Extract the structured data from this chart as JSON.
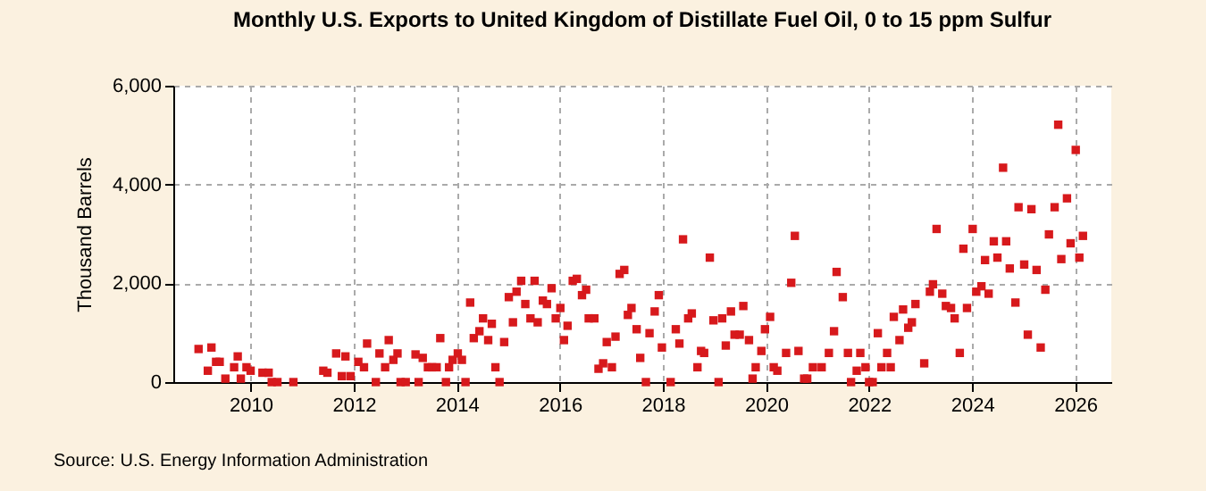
{
  "chart_data": {
    "type": "scatter",
    "title": "Monthly U.S. Exports to United Kingdom of Distillate Fuel Oil, 0 to 15 ppm Sulfur",
    "ylabel": "Thousand Barrels",
    "annotations": [
      "Source: U.S. Energy Information Administration"
    ],
    "marker": "square",
    "grid": true,
    "xlim": [
      2008.5,
      2026.7
    ],
    "xticks": [
      2010,
      2012,
      2014,
      2016,
      2018,
      2020,
      2022,
      2024,
      2026
    ],
    "ylim": [
      0,
      6000
    ],
    "yticks": [
      0,
      {
        "value": 2000,
        "label": "2,000"
      },
      {
        "value": 4000,
        "label": "4,000"
      },
      {
        "value": 6000,
        "label": "6,000"
      }
    ],
    "series": [
      {
        "color": "#d7191c",
        "x": [
          2008.99,
          2009.17,
          2009.24,
          2009.33,
          2009.4,
          2009.51,
          2009.68,
          2009.75,
          2009.81,
          2009.92,
          2010.0,
          2010.23,
          2010.35,
          2010.41,
          2010.52,
          2010.83,
          2011.41,
          2011.49,
          2011.66,
          2011.77,
          2011.84,
          2011.94,
          2012.09,
          2012.2,
          2012.26,
          2012.43,
          2012.5,
          2012.61,
          2012.68,
          2012.77,
          2012.85,
          2012.91,
          2013.01,
          2013.2,
          2013.26,
          2013.34,
          2013.44,
          2013.52,
          2013.61,
          2013.68,
          2013.79,
          2013.85,
          2013.92,
          2014.02,
          2014.1,
          2014.17,
          2014.26,
          2014.33,
          2014.44,
          2014.51,
          2014.61,
          2014.68,
          2014.75,
          2014.83,
          2014.92,
          2015.01,
          2015.09,
          2015.16,
          2015.25,
          2015.33,
          2015.43,
          2015.51,
          2015.57,
          2015.67,
          2015.75,
          2015.84,
          2015.92,
          2016.01,
          2016.08,
          2016.15,
          2016.25,
          2016.33,
          2016.43,
          2016.51,
          2016.56,
          2016.67,
          2016.75,
          2016.84,
          2016.91,
          2017.01,
          2017.08,
          2017.16,
          2017.25,
          2017.32,
          2017.39,
          2017.49,
          2017.56,
          2017.67,
          2017.74,
          2017.84,
          2017.92,
          2017.98,
          2018.15,
          2018.25,
          2018.32,
          2018.39,
          2018.49,
          2018.56,
          2018.67,
          2018.74,
          2018.8,
          2018.91,
          2018.98,
          2019.08,
          2019.15,
          2019.22,
          2019.32,
          2019.39,
          2019.49,
          2019.56,
          2019.67,
          2019.74,
          2019.8,
          2019.91,
          2019.98,
          2020.08,
          2020.15,
          2020.22,
          2020.39,
          2020.49,
          2020.56,
          2020.63,
          2020.74,
          2020.8,
          2020.91,
          2021.08,
          2021.22,
          2021.32,
          2021.37,
          2021.49,
          2021.59,
          2021.65,
          2021.76,
          2021.83,
          2021.93,
          2022.0,
          2022.07,
          2022.17,
          2022.24,
          2022.35,
          2022.42,
          2022.48,
          2022.59,
          2022.66,
          2022.76,
          2022.83,
          2022.9,
          2023.07,
          2023.18,
          2023.24,
          2023.31,
          2023.42,
          2023.49,
          2023.59,
          2023.66,
          2023.76,
          2023.83,
          2023.9,
          2024.01,
          2024.08,
          2024.18,
          2024.25,
          2024.32,
          2024.42,
          2024.49,
          2024.6,
          2024.66,
          2024.73,
          2024.84,
          2024.9,
          2025.01,
          2025.08,
          2025.15,
          2025.25,
          2025.33,
          2025.42,
          2025.49,
          2025.6,
          2025.67,
          2025.73,
          2025.84,
          2025.91,
          2026.01,
          2026.08,
          2026.15
        ],
        "values": [
          670,
          230,
          700,
          410,
          410,
          70,
          300,
          520,
          70,
          300,
          230,
          190,
          190,
          0,
          0,
          0,
          230,
          190,
          580,
          120,
          520,
          120,
          410,
          300,
          780,
          0,
          580,
          300,
          850,
          450,
          580,
          0,
          0,
          560,
          0,
          490,
          300,
          300,
          300,
          890,
          0,
          300,
          450,
          580,
          450,
          0,
          1610,
          890,
          1030,
          1290,
          850,
          1180,
          300,
          0,
          810,
          1720,
          1210,
          1830,
          2050,
          1580,
          1290,
          2050,
          1210,
          1650,
          1580,
          1900,
          1290,
          1500,
          850,
          1140,
          2050,
          2090,
          1760,
          1870,
          1290,
          1290,
          270,
          380,
          810,
          300,
          920,
          2190,
          2270,
          1360,
          1500,
          1070,
          490,
          0,
          990,
          1430,
          1760,
          700,
          0,
          1070,
          780,
          2890,
          1290,
          1390,
          300,
          630,
          590,
          2520,
          1250,
          0,
          1290,
          740,
          1430,
          960,
          960,
          1540,
          850,
          70,
          300,
          630,
          1070,
          1320,
          300,
          230,
          590,
          2010,
          2960,
          630,
          70,
          70,
          300,
          300,
          590,
          1030,
          2230,
          1720,
          590,
          0,
          230,
          590,
          300,
          0,
          0,
          990,
          300,
          590,
          300,
          1320,
          850,
          1470,
          1100,
          1210,
          1580,
          380,
          1830,
          1980,
          3100,
          1790,
          1540,
          1500,
          1290,
          590,
          2700,
          1500,
          3100,
          1830,
          1940,
          2470,
          1790,
          2850,
          2520,
          4340,
          2850,
          2300,
          1610,
          3540,
          2380,
          960,
          3500,
          2270,
          700,
          1870,
          2990,
          3540,
          5210,
          2490,
          3720,
          2810,
          4700,
          2520,
          2960
        ]
      }
    ]
  }
}
